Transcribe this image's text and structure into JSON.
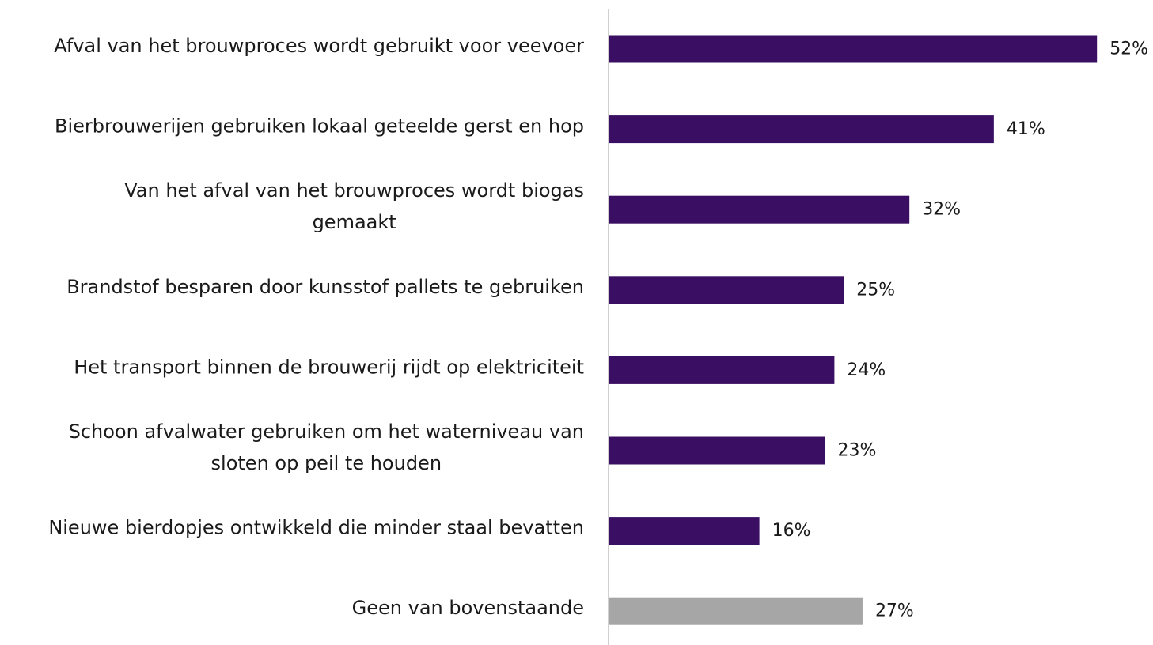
{
  "chart_data": {
    "type": "bar",
    "orientation": "horizontal",
    "categories": [
      "Afval van het brouwproces wordt gebruikt voor veevoer",
      "Bierbrouwerijen gebruiken lokaal geteelde gerst en hop",
      "Van het afval van het brouwproces wordt biogas gemaakt",
      "Brandstof besparen door kunsstof pallets te gebruiken",
      "Het transport binnen de brouwerij rijdt op elektriciteit",
      "Schoon afvalwater gebruiken om het waterniveau van sloten op peil te houden",
      "Nieuwe bierdopjes ontwikkeld die minder staal bevatten",
      "Geen van bovenstaande"
    ],
    "category_lines": [
      [
        "Afval van het brouwproces wordt gebruikt voor veevoer"
      ],
      [
        "Bierbrouwerijen gebruiken lokaal geteelde gerst en hop"
      ],
      [
        "Van het afval van het brouwproces wordt biogas",
        "gemaakt"
      ],
      [
        "Brandstof besparen door kunsstof pallets te gebruiken"
      ],
      [
        "Het transport binnen de brouwerij rijdt op elektriciteit"
      ],
      [
        "Schoon afvalwater gebruiken om het waterniveau van",
        "sloten op peil te houden"
      ],
      [
        "Nieuwe bierdopjes ontwikkeld die minder staal bevatten"
      ],
      [
        "Geen van bovenstaande"
      ]
    ],
    "values": [
      52,
      41,
      32,
      25,
      24,
      23,
      16,
      27
    ],
    "value_labels": [
      "52%",
      "41%",
      "32%",
      "25%",
      "24%",
      "23%",
      "16%",
      "27%"
    ],
    "unit": "%",
    "bar_colors": [
      "#3a0f63",
      "#3a0f63",
      "#3a0f63",
      "#3a0f63",
      "#3a0f63",
      "#3a0f63",
      "#3a0f63",
      "#a6a6a6"
    ],
    "axis_line_color": "#d0d0d0",
    "xlim": [
      0,
      100
    ],
    "grid": false,
    "legend": "none",
    "title": "",
    "xlabel": "",
    "ylabel": ""
  }
}
